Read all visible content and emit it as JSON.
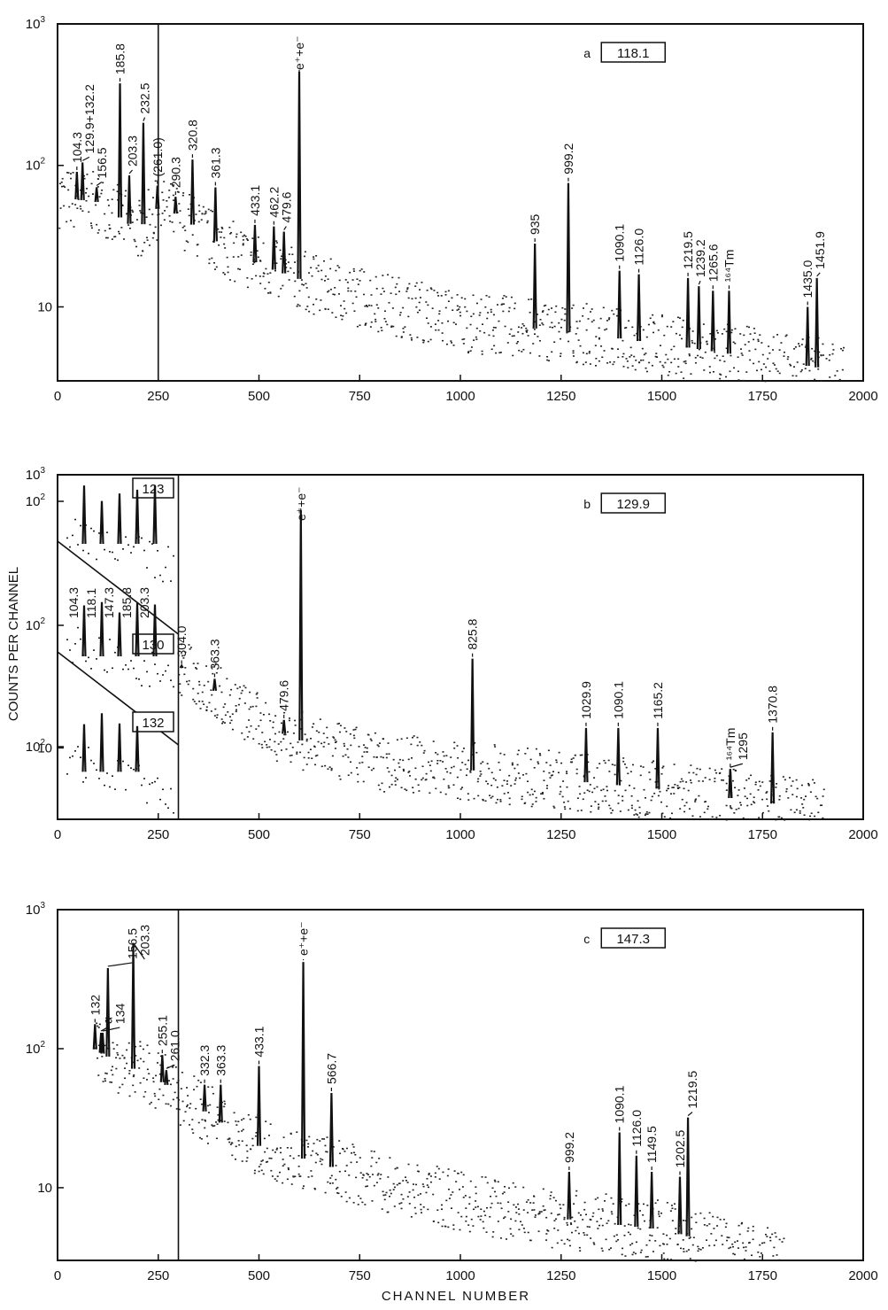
{
  "y_axis_label": "COUNTS PER CHANNEL",
  "x_axis_label": "CHANNEL NUMBER",
  "chart_data": [
    {
      "id": "a",
      "type": "scatter",
      "panel_letter": "a",
      "gate_energy": "118.1",
      "xlim": [
        0,
        2000
      ],
      "ylim": [
        3,
        1000
      ],
      "y_scale": "log",
      "x_ticks": [
        "0",
        "250",
        "500",
        "750",
        "1000",
        "1250",
        "1500",
        "1750",
        "2000"
      ],
      "y_ticks": [
        {
          "value": 1000,
          "base": "10",
          "exp": "3"
        },
        {
          "value": 100,
          "base": "10",
          "exp": "2"
        },
        {
          "value": 10,
          "base": "10",
          "exp": ""
        }
      ],
      "divider_channel": 250,
      "background": [
        [
          0,
          60
        ],
        [
          100,
          55
        ],
        [
          200,
          35
        ],
        [
          250,
          50
        ],
        [
          300,
          45
        ],
        [
          400,
          28
        ],
        [
          500,
          20
        ],
        [
          650,
          14
        ],
        [
          800,
          11
        ],
        [
          1000,
          8
        ],
        [
          1300,
          6.5
        ],
        [
          1600,
          5
        ],
        [
          1950,
          3.5
        ]
      ],
      "peaks": [
        {
          "label": "104.3",
          "channel": 48,
          "top": 90
        },
        {
          "label": "129.9+132.2",
          "channel": 62,
          "top": 105
        },
        {
          "label": "156.5",
          "channel": 97,
          "top": 70
        },
        {
          "label": "185.8",
          "channel": 155,
          "top": 380
        },
        {
          "label": "203.3",
          "channel": 178,
          "top": 85
        },
        {
          "label": "232.5",
          "channel": 213,
          "top": 200
        },
        {
          "label": "(261.0)",
          "channel": 248,
          "top": 72
        },
        {
          "label": "290.3",
          "channel": 293,
          "top": 60
        },
        {
          "label": "320.8",
          "channel": 335,
          "top": 110
        },
        {
          "label": "361.3",
          "channel": 392,
          "top": 70
        },
        {
          "label": "433.1",
          "channel": 490,
          "top": 38
        },
        {
          "label": "462.2",
          "channel": 537,
          "top": 37
        },
        {
          "label": "479.6",
          "channel": 562,
          "top": 34
        },
        {
          "label": "e⁺+e⁻",
          "channel": 600,
          "top": 460
        },
        {
          "label": "935",
          "channel": 1185,
          "top": 28
        },
        {
          "label": "999.2",
          "channel": 1268,
          "top": 75
        },
        {
          "label": "1090.1",
          "channel": 1395,
          "top": 18
        },
        {
          "label": "1126.0",
          "channel": 1443,
          "top": 17
        },
        {
          "label": "1219.5",
          "channel": 1565,
          "top": 16
        },
        {
          "label": "1239.2",
          "channel": 1592,
          "top": 14
        },
        {
          "label": "1265.6",
          "channel": 1627,
          "top": 13
        },
        {
          "label": "¹⁶⁴Tm",
          "channel": 1667,
          "top": 13
        },
        {
          "label": "1435.0",
          "channel": 1862,
          "top": 10
        },
        {
          "label": "1451.9",
          "channel": 1885,
          "top": 16
        }
      ]
    },
    {
      "id": "b",
      "type": "scatter",
      "panel_letter": "b",
      "gate_energy": "129.9",
      "xlim": [
        0,
        2000
      ],
      "ylim": [
        3,
        1000
      ],
      "y_scale": "log",
      "x_ticks": [
        "0",
        "250",
        "500",
        "750",
        "1000",
        "1250",
        "1500",
        "1750",
        "2000"
      ],
      "y_ticks": [
        {
          "value": 1000,
          "base": "10",
          "exp": "3"
        },
        {
          "value": 10,
          "base": "10",
          "exp": ""
        }
      ],
      "divider_channel": 300,
      "background": [
        [
          300,
          40
        ],
        [
          400,
          25
        ],
        [
          500,
          15
        ],
        [
          650,
          10
        ],
        [
          800,
          8
        ],
        [
          1000,
          7
        ],
        [
          1200,
          6
        ],
        [
          1500,
          5
        ],
        [
          1900,
          3.5
        ]
      ],
      "peaks": [
        {
          "label": "304.0",
          "channel": 308,
          "top": 40
        },
        {
          "label": "363.3",
          "channel": 390,
          "top": 32
        },
        {
          "label": "479.6",
          "channel": 562,
          "top": 16
        },
        {
          "label": "e⁺+e⁻",
          "channel": 604,
          "top": 550
        },
        {
          "label": "825.8",
          "channel": 1030,
          "top": 45
        },
        {
          "label": "1029.9",
          "channel": 1312,
          "top": 14
        },
        {
          "label": "1090.1",
          "channel": 1392,
          "top": 14
        },
        {
          "label": "1165.2",
          "channel": 1490,
          "top": 14
        },
        {
          "label": "¹⁶⁴Tm",
          "channel": 1670,
          "top": 7
        },
        {
          "label": "1295",
          "channel": 1670,
          "top": 7
        },
        {
          "label": "1370.8",
          "channel": 1775,
          "top": 13
        }
      ],
      "inset": {
        "y_ticks": [
          {
            "base": "10",
            "exp": "2"
          },
          {
            "base": "10",
            "exp": "2"
          },
          {
            "base": "10",
            "exp": "2"
          }
        ],
        "gates": [
          "123",
          "130",
          "132"
        ],
        "peak_labels": [
          "104.3",
          "118.1",
          "147.3",
          "185.8",
          "203.3"
        ],
        "x_ticks": [
          "0",
          "250"
        ]
      }
    },
    {
      "id": "c",
      "type": "scatter",
      "panel_letter": "c",
      "gate_energy": "147.3",
      "xlim": [
        0,
        2000
      ],
      "ylim": [
        3,
        1000
      ],
      "y_scale": "log",
      "x_ticks": [
        "0",
        "250",
        "500",
        "750",
        "1000",
        "1250",
        "1500",
        "1750",
        "2000"
      ],
      "y_ticks": [
        {
          "value": 1000,
          "base": "10",
          "exp": "3"
        },
        {
          "value": 100,
          "base": "10",
          "exp": "2"
        },
        {
          "value": 10,
          "base": "10",
          "exp": ""
        }
      ],
      "divider_channel": 300,
      "background": [
        [
          90,
          100
        ],
        [
          150,
          80
        ],
        [
          250,
          60
        ],
        [
          300,
          48
        ],
        [
          400,
          30
        ],
        [
          500,
          20
        ],
        [
          650,
          15
        ],
        [
          800,
          11
        ],
        [
          1000,
          8
        ],
        [
          1250,
          6
        ],
        [
          1500,
          5
        ],
        [
          1800,
          3
        ]
      ],
      "peaks": [
        {
          "label": "132",
          "channel": 93,
          "top": 150
        },
        {
          "label": "α",
          "channel": 108,
          "top": 130
        },
        {
          "label": "134",
          "channel": 112,
          "top": 130
        },
        {
          "label": "156.5",
          "channel": 125,
          "top": 380
        },
        {
          "label": "203.3",
          "channel": 188,
          "top": 560
        },
        {
          "label": "255.1",
          "channel": 260,
          "top": 90
        },
        {
          "label": "261.0",
          "channel": 270,
          "top": 70
        },
        {
          "label": "332.3",
          "channel": 365,
          "top": 55
        },
        {
          "label": "363.3",
          "channel": 405,
          "top": 55
        },
        {
          "label": "433.1",
          "channel": 500,
          "top": 75
        },
        {
          "label": "e⁺+e⁻",
          "channel": 610,
          "top": 420
        },
        {
          "label": "566.7",
          "channel": 680,
          "top": 48
        },
        {
          "label": "999.2",
          "channel": 1270,
          "top": 13
        },
        {
          "label": "1090.1",
          "channel": 1395,
          "top": 25
        },
        {
          "label": "1126.0",
          "channel": 1437,
          "top": 17
        },
        {
          "label": "1149.5",
          "channel": 1475,
          "top": 13
        },
        {
          "label": "1202.5",
          "channel": 1545,
          "top": 12
        },
        {
          "label": "1219.5",
          "channel": 1565,
          "top": 32
        }
      ]
    }
  ]
}
